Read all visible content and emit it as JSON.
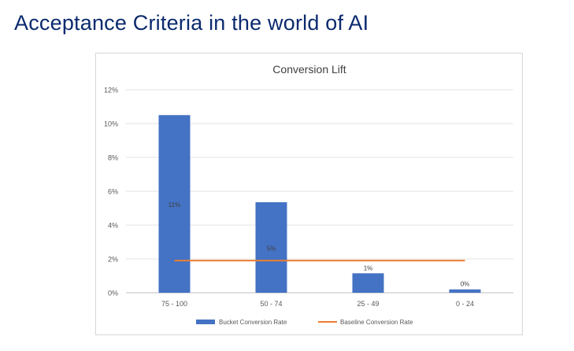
{
  "slide": {
    "title": "Acceptance Criteria in the world of AI"
  },
  "chart_data": {
    "type": "bar",
    "title": "Conversion Lift",
    "categories": [
      "75 - 100",
      "50 - 74",
      "25 - 49",
      "0 - 24"
    ],
    "series": [
      {
        "name": "Bucket Conversion Rate",
        "type": "bar",
        "color": "#4472c4",
        "values": [
          10.5,
          5.35,
          1.15,
          0.2
        ],
        "labels": [
          "11%",
          "5%",
          "1%",
          "0%"
        ]
      },
      {
        "name": "Baseline Conversion Rate",
        "type": "line",
        "color": "#ed7d31",
        "values": [
          1.9,
          1.9,
          1.9,
          1.9
        ]
      }
    ],
    "yticks": [
      "0%",
      "2%",
      "4%",
      "6%",
      "8%",
      "10%",
      "12%"
    ],
    "ylim": [
      0,
      12
    ],
    "xlabel": "",
    "ylabel": "",
    "grid": true,
    "legend": "bottom"
  }
}
